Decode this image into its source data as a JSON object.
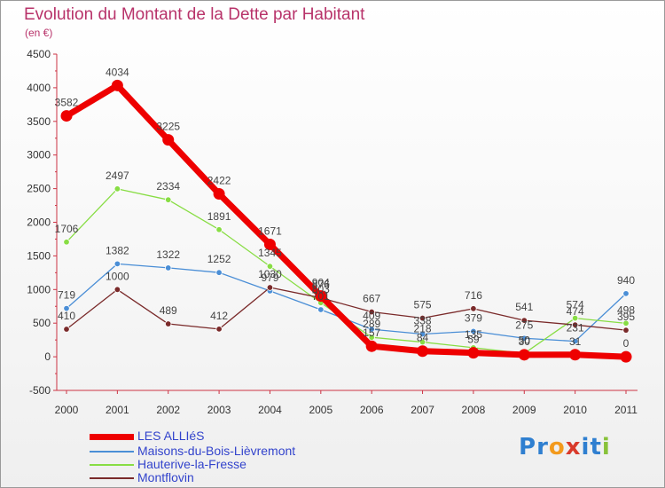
{
  "title": "Evolution du Montant de la Dette par Habitant",
  "unit": "(en €)",
  "logo": {
    "text": "Proxiti",
    "letters": [
      {
        "ch": "P",
        "color": "#2f7fd0"
      },
      {
        "ch": "r",
        "color": "#2f7fd0"
      },
      {
        "ch": "o",
        "color": "#f39a1d"
      },
      {
        "ch": "x",
        "color": "#d93a2b"
      },
      {
        "ch": "i",
        "color": "#2f7fd0"
      },
      {
        "ch": "t",
        "color": "#2f7fd0"
      },
      {
        "ch": "i",
        "color": "#88c23a"
      }
    ]
  },
  "chart_data": {
    "type": "line",
    "title": "Evolution du Montant de la Dette par Habitant",
    "xlabel": "",
    "ylabel": "(en €)",
    "ylim": [
      -500,
      4500
    ],
    "yticks": [
      -500,
      0,
      500,
      1000,
      1500,
      2000,
      2500,
      3000,
      3500,
      4000,
      4500
    ],
    "x": [
      "2000",
      "2001",
      "2002",
      "2003",
      "2004",
      "2005",
      "2006",
      "2007",
      "2008",
      "2009",
      "2010",
      "2011"
    ],
    "grid": false,
    "legend_position": "bottom-left",
    "series": [
      {
        "name": "LES ALLIéS",
        "color": "#ee0000",
        "highlight": true,
        "values": [
          3582,
          4034,
          3225,
          2422,
          1671,
          904,
          157,
          84,
          59,
          30,
          31,
          0
        ]
      },
      {
        "name": "Maisons-du-Bois-Lièvremont",
        "color": "#4a8ed6",
        "values": [
          719,
          1382,
          1322,
          1252,
          979,
          701,
          409,
          338,
          379,
          275,
          231,
          940
        ]
      },
      {
        "name": "Hauterive-la-Fresse",
        "color": "#88dd44",
        "values": [
          1706,
          2497,
          2334,
          1891,
          1345,
          803,
          289,
          218,
          135,
          50,
          574,
          498
        ]
      },
      {
        "name": "Montflovin",
        "color": "#7a2a2a",
        "values": [
          410,
          1000,
          489,
          412,
          1030,
          876,
          667,
          575,
          716,
          541,
          474,
          395
        ]
      }
    ]
  }
}
